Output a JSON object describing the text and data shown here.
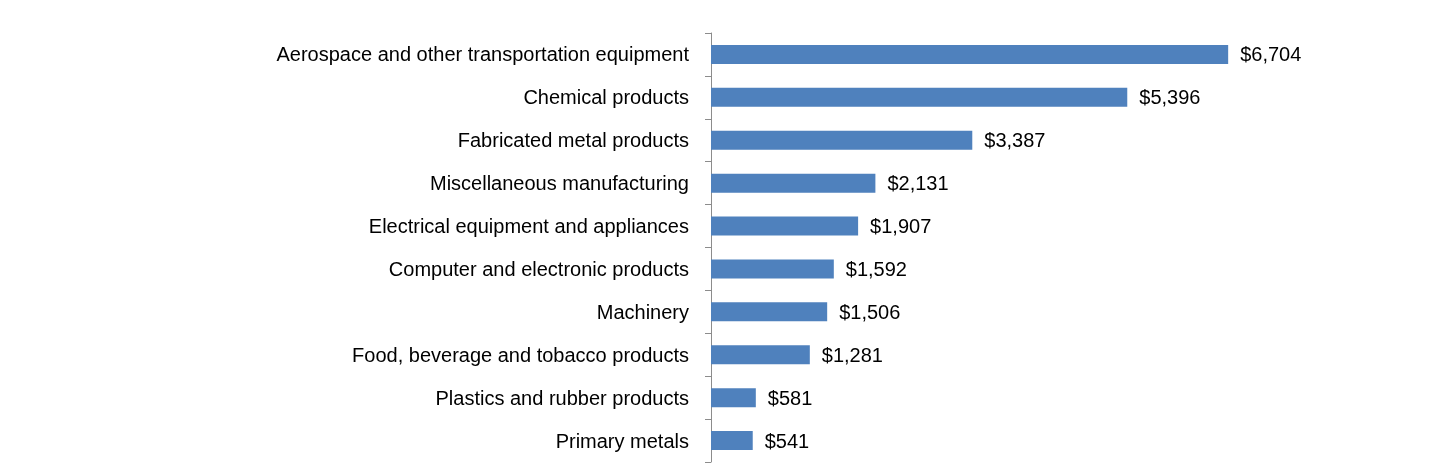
{
  "chart_data": {
    "type": "bar",
    "orientation": "horizontal",
    "categories": [
      "Aerospace and other transportation equipment",
      "Chemical products",
      "Fabricated metal products",
      "Miscellaneous manufacturing",
      "Electrical equipment and appliances",
      "Computer and electronic products",
      "Machinery",
      "Food, beverage and tobacco products",
      "Plastics and rubber products",
      "Primary metals"
    ],
    "values": [
      6704,
      5396,
      3387,
      2131,
      1907,
      1592,
      1506,
      1281,
      581,
      541
    ],
    "value_labels": [
      "$6,704",
      "$5,396",
      "$3,387",
      "$2,131",
      "$1,907",
      "$1,592",
      "$1,506",
      "$1,281",
      "$581",
      "$541"
    ],
    "color": "#4f81bd"
  }
}
